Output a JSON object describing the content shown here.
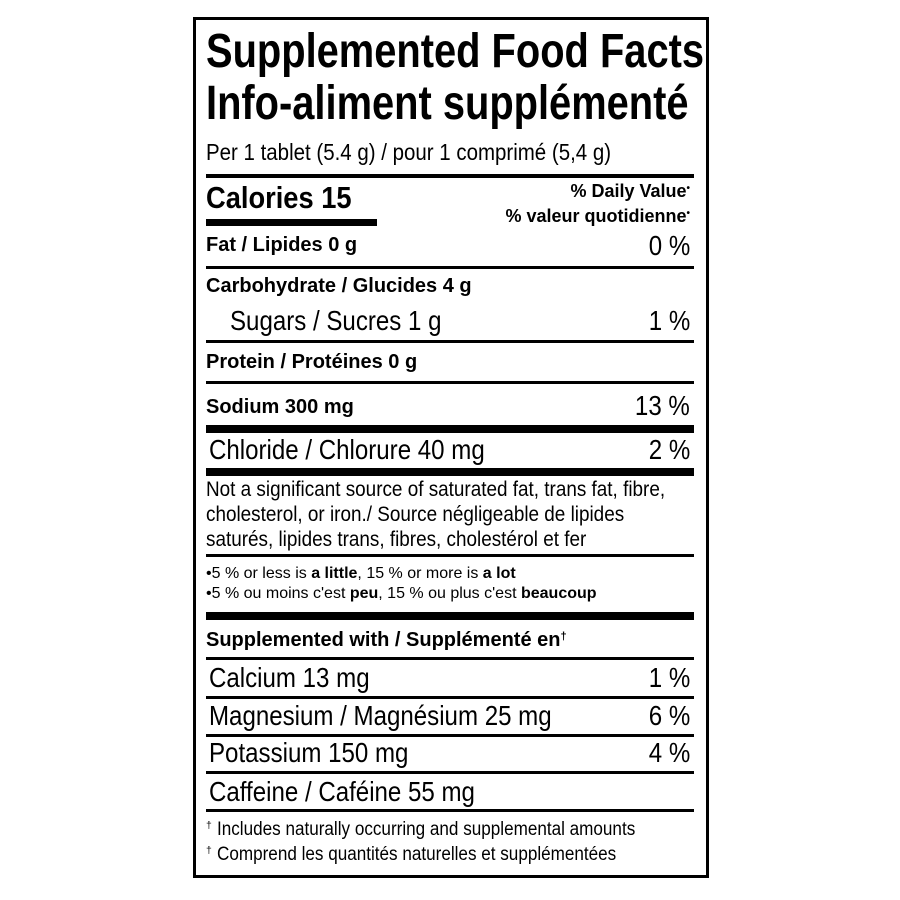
{
  "title_en": "Supplemented Food Facts",
  "title_fr": "Info-aliment supplémenté",
  "serving": "Per 1 tablet (5.4 g) / pour 1 comprimé (5,4 g)",
  "calories": "Calories 15",
  "dv_en": "% Daily Value",
  "dv_fr": "% valeur quotidienne",
  "dv_mark": "•",
  "nutrients": [
    {
      "label": "Fat / Lipides 0 g",
      "dv": "0 %"
    },
    {
      "label": "Carbohydrate / Glucides 4 g",
      "dv": ""
    },
    {
      "label": "Sugars / Sucres 1 g",
      "dv": "1 %"
    },
    {
      "label": "Protein / Protéines 0 g",
      "dv": ""
    },
    {
      "label": "Sodium 300 mg",
      "dv": "13 %"
    },
    {
      "label": "Chloride / Chlorure 40 mg",
      "dv": "2 %"
    }
  ],
  "note_lines": [
    "Not a significant source of saturated fat, trans fat, fibre,",
    "cholesterol, or iron./ Source négligeable de lipides",
    "saturés, lipides trans, fibres, cholestérol et fer"
  ],
  "dv_guide": {
    "en": [
      "•5 % or less is ",
      "a little",
      ", 15 % or more is ",
      "a lot"
    ],
    "fr": [
      "•5 % ou moins c'est ",
      "peu",
      ", 15 % ou plus c'est ",
      "beaucoup"
    ]
  },
  "supplemented_heading": "Supplemented with / Supplémenté en",
  "dagger": "†",
  "supplements": [
    {
      "label": "Calcium 13 mg",
      "dv": "1 %"
    },
    {
      "label": "Magnesium / Magnésium 25 mg",
      "dv": "6 %"
    },
    {
      "label": "Potassium 150 mg",
      "dv": "4 %"
    },
    {
      "label": "Caffeine / Caféine 55 mg",
      "dv": ""
    }
  ],
  "footnotes": [
    "Includes naturally occurring and supplemental amounts",
    "Comprend les quantités naturelles et supplémentées"
  ]
}
